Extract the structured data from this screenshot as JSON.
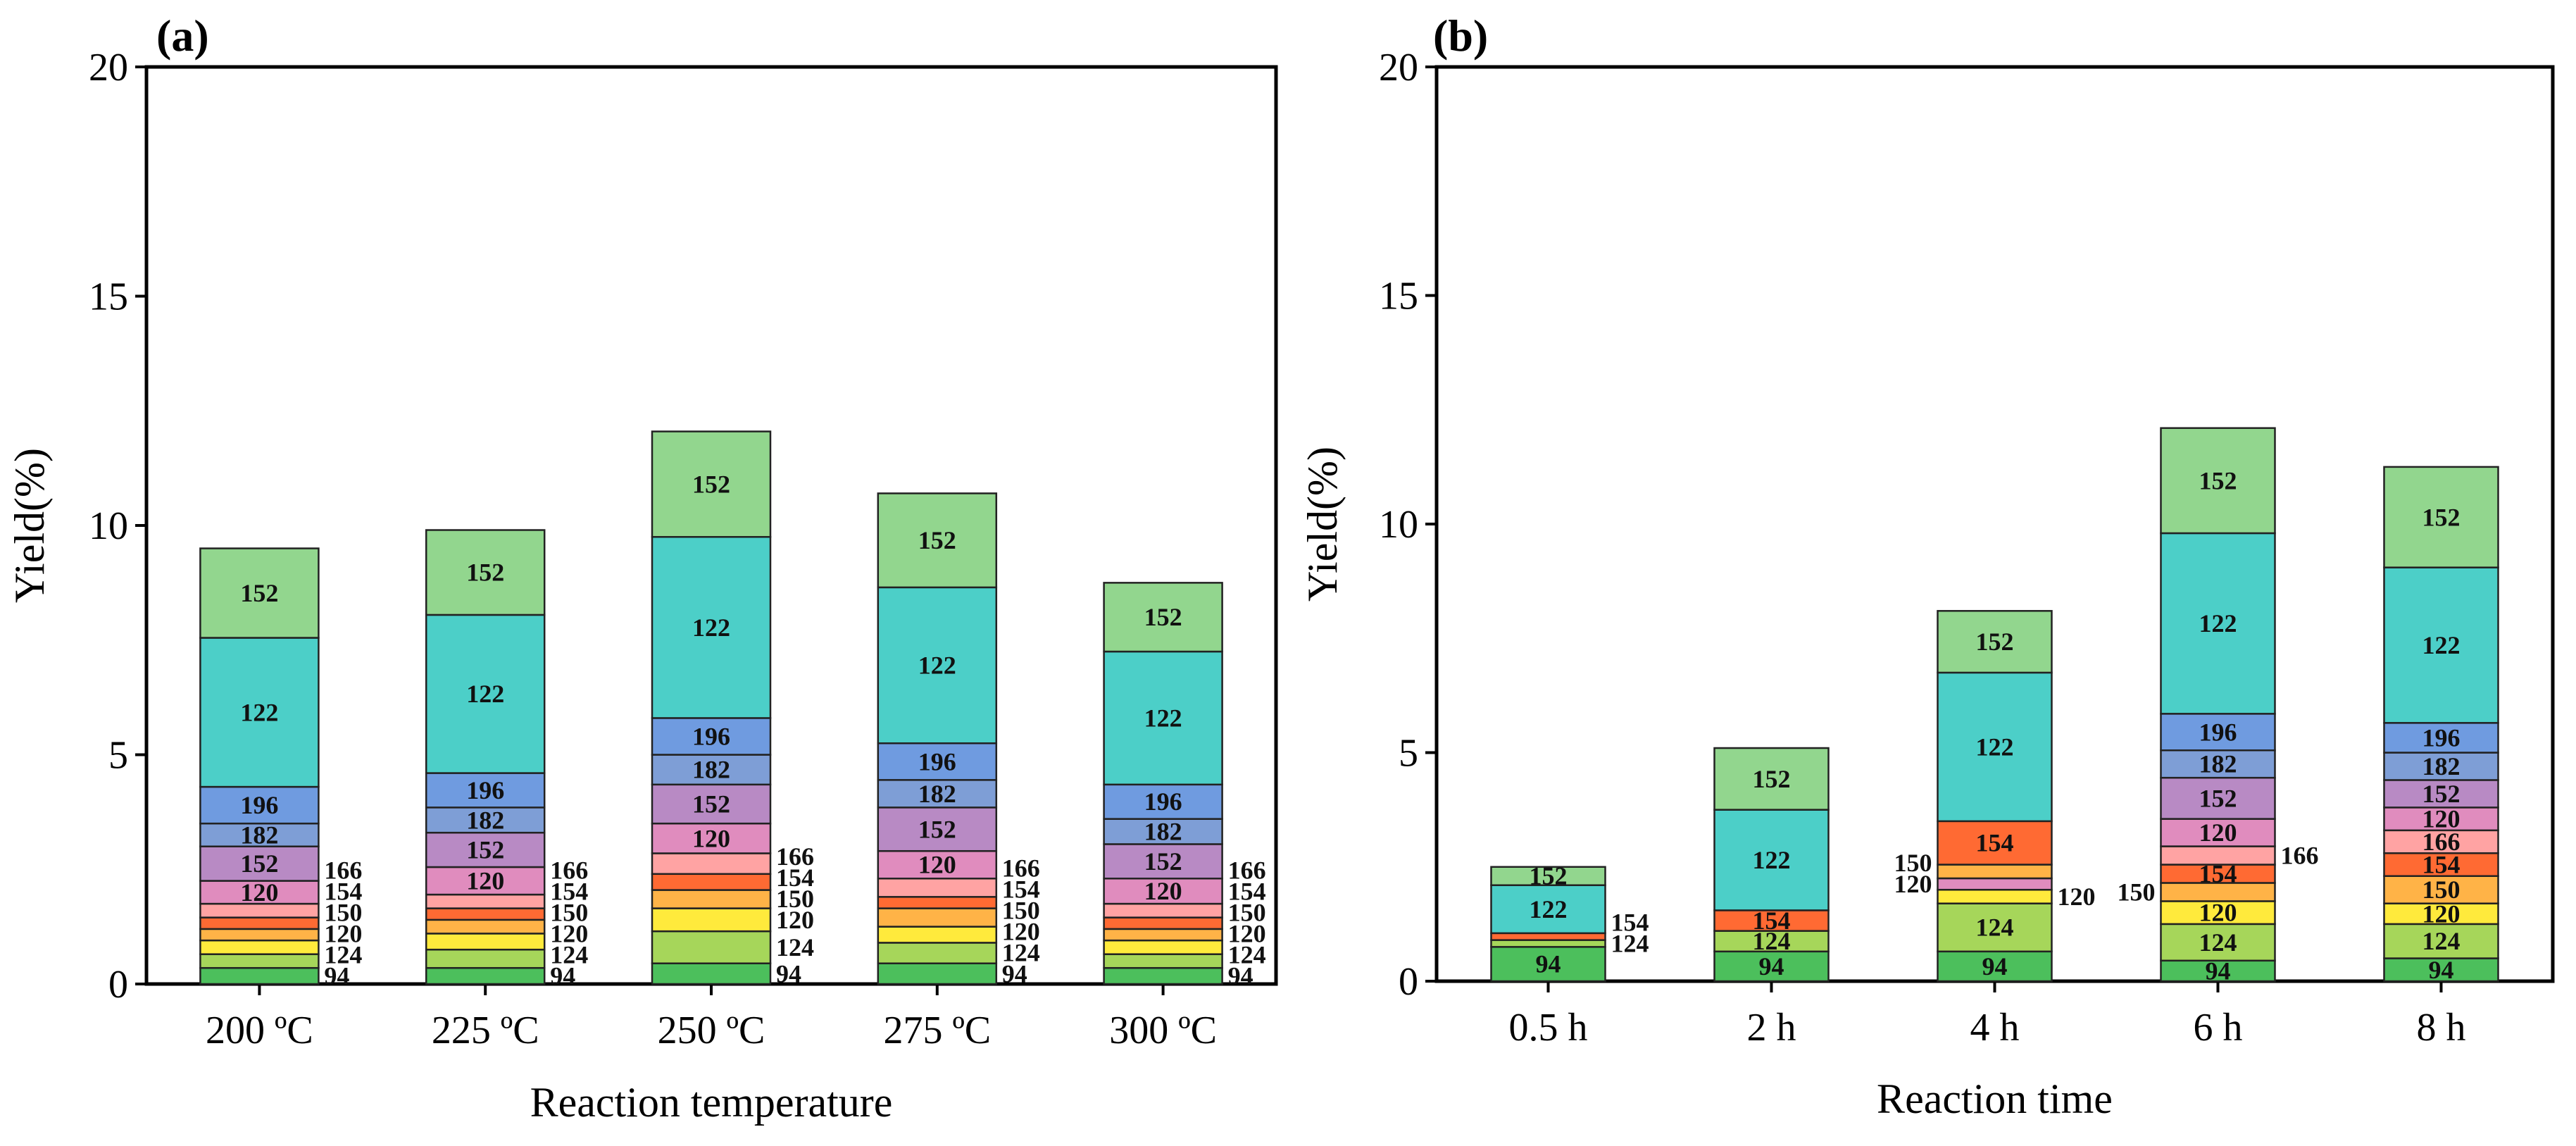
{
  "colors": {
    "94": "#4cbf5c",
    "124": "#a6d65a",
    "120": "#ffea3c",
    "150": "#ffb347",
    "154": "#ff6a33",
    "166": "#ff9a9a",
    "152": "#b88ac4",
    "182": "#7e9ed6",
    "196": "#6f9be0",
    "122": "#4ccfc8",
    "152top": "#92d68e",
    "120p": "#e08cbe",
    "166p": "#ffa3a3"
  },
  "chart_data": [
    {
      "type": "bar",
      "panel": "(a)",
      "title": "",
      "xlabel": "Reaction temperature",
      "ylabel": "Yield(%)",
      "ylim": [
        0,
        20
      ],
      "yticks": [
        "0",
        "5",
        "10",
        "15",
        "20"
      ],
      "categories": [
        "200 ºC",
        "225 ºC",
        "250 ºC",
        "275 ºC",
        "300 ºC"
      ],
      "stacked": true,
      "bars": [
        {
          "category": "200 ºC",
          "segments": [
            {
              "label": "94",
              "value": 0.35,
              "color": "94",
              "inside": false
            },
            {
              "label": "124",
              "value": 0.3,
              "color": "124",
              "inside": false
            },
            {
              "label": "120",
              "value": 0.3,
              "color": "120",
              "inside": false
            },
            {
              "label": "150",
              "value": 0.25,
              "color": "150",
              "inside": false
            },
            {
              "label": "154",
              "value": 0.25,
              "color": "154",
              "inside": false
            },
            {
              "label": "166",
              "value": 0.3,
              "color": "166p",
              "inside": false
            },
            {
              "label": "120",
              "value": 0.5,
              "color": "120p",
              "inside": true
            },
            {
              "label": "152",
              "value": 0.75,
              "color": "152",
              "inside": true
            },
            {
              "label": "182",
              "value": 0.5,
              "color": "182",
              "inside": true
            },
            {
              "label": "196",
              "value": 0.8,
              "color": "196",
              "inside": true
            },
            {
              "label": "122",
              "value": 3.25,
              "color": "122",
              "inside": true
            },
            {
              "label": "152",
              "value": 1.95,
              "color": "152top",
              "inside": true
            }
          ]
        },
        {
          "category": "225 ºC",
          "segments": [
            {
              "label": "94",
              "value": 0.35,
              "color": "94",
              "inside": false
            },
            {
              "label": "124",
              "value": 0.4,
              "color": "124",
              "inside": false
            },
            {
              "label": "120",
              "value": 0.35,
              "color": "120",
              "inside": false
            },
            {
              "label": "150",
              "value": 0.3,
              "color": "150",
              "inside": false
            },
            {
              "label": "154",
              "value": 0.25,
              "color": "154",
              "inside": false
            },
            {
              "label": "166",
              "value": 0.3,
              "color": "166p",
              "inside": false
            },
            {
              "label": "120",
              "value": 0.6,
              "color": "120p",
              "inside": true
            },
            {
              "label": "152",
              "value": 0.75,
              "color": "152",
              "inside": true
            },
            {
              "label": "182",
              "value": 0.55,
              "color": "182",
              "inside": true
            },
            {
              "label": "196",
              "value": 0.75,
              "color": "196",
              "inside": true
            },
            {
              "label": "122",
              "value": 3.45,
              "color": "122",
              "inside": true
            },
            {
              "label": "152",
              "value": 1.85,
              "color": "152top",
              "inside": true
            }
          ]
        },
        {
          "category": "250 ºC",
          "segments": [
            {
              "label": "94",
              "value": 0.45,
              "color": "94",
              "inside": false
            },
            {
              "label": "124",
              "value": 0.7,
              "color": "124",
              "inside": false
            },
            {
              "label": "120",
              "value": 0.5,
              "color": "120",
              "inside": false
            },
            {
              "label": "150",
              "value": 0.4,
              "color": "150",
              "inside": false
            },
            {
              "label": "154",
              "value": 0.35,
              "color": "154",
              "inside": false
            },
            {
              "label": "166",
              "value": 0.45,
              "color": "166p",
              "inside": false
            },
            {
              "label": "120",
              "value": 0.65,
              "color": "120p",
              "inside": true
            },
            {
              "label": "152",
              "value": 0.85,
              "color": "152",
              "inside": true
            },
            {
              "label": "182",
              "value": 0.65,
              "color": "182",
              "inside": true
            },
            {
              "label": "196",
              "value": 0.8,
              "color": "196",
              "inside": true
            },
            {
              "label": "122",
              "value": 3.95,
              "color": "122",
              "inside": true
            },
            {
              "label": "152",
              "value": 2.3,
              "color": "152top",
              "inside": true
            }
          ]
        },
        {
          "category": "275 ºC",
          "segments": [
            {
              "label": "94",
              "value": 0.45,
              "color": "94",
              "inside": false
            },
            {
              "label": "124",
              "value": 0.45,
              "color": "124",
              "inside": false
            },
            {
              "label": "120",
              "value": 0.35,
              "color": "120",
              "inside": false
            },
            {
              "label": "150",
              "value": 0.4,
              "color": "150",
              "inside": false
            },
            {
              "label": "154",
              "value": 0.25,
              "color": "154",
              "inside": false
            },
            {
              "label": "166",
              "value": 0.4,
              "color": "166p",
              "inside": false
            },
            {
              "label": "120",
              "value": 0.6,
              "color": "120p",
              "inside": true
            },
            {
              "label": "152",
              "value": 0.95,
              "color": "152",
              "inside": true
            },
            {
              "label": "182",
              "value": 0.6,
              "color": "182",
              "inside": true
            },
            {
              "label": "196",
              "value": 0.8,
              "color": "196",
              "inside": true
            },
            {
              "label": "122",
              "value": 3.4,
              "color": "122",
              "inside": true
            },
            {
              "label": "152",
              "value": 2.05,
              "color": "152top",
              "inside": true
            }
          ]
        },
        {
          "category": "300 ºC",
          "segments": [
            {
              "label": "94",
              "value": 0.35,
              "color": "94",
              "inside": false
            },
            {
              "label": "124",
              "value": 0.3,
              "color": "124",
              "inside": false
            },
            {
              "label": "120",
              "value": 0.3,
              "color": "120",
              "inside": false
            },
            {
              "label": "150",
              "value": 0.25,
              "color": "150",
              "inside": false
            },
            {
              "label": "154",
              "value": 0.25,
              "color": "154",
              "inside": false
            },
            {
              "label": "166",
              "value": 0.3,
              "color": "166p",
              "inside": false
            },
            {
              "label": "120",
              "value": 0.55,
              "color": "120p",
              "inside": true
            },
            {
              "label": "152",
              "value": 0.75,
              "color": "152",
              "inside": true
            },
            {
              "label": "182",
              "value": 0.55,
              "color": "182",
              "inside": true
            },
            {
              "label": "196",
              "value": 0.75,
              "color": "196",
              "inside": true
            },
            {
              "label": "122",
              "value": 2.9,
              "color": "122",
              "inside": true
            },
            {
              "label": "152",
              "value": 1.5,
              "color": "152top",
              "inside": true
            }
          ]
        }
      ]
    },
    {
      "type": "bar",
      "panel": "(b)",
      "title": "",
      "xlabel": "Reaction time",
      "ylabel": "Yield(%)",
      "ylim": [
        0,
        20
      ],
      "yticks": [
        "0",
        "5",
        "10",
        "15",
        "20"
      ],
      "categories": [
        "0.5 h",
        "2 h",
        "4 h",
        "6 h",
        "8 h"
      ],
      "stacked": true,
      "bars": [
        {
          "category": "0.5 h",
          "segments": [
            {
              "label": "94",
              "value": 0.75,
              "color": "94",
              "inside": true
            },
            {
              "label": "124",
              "value": 0.15,
              "color": "124",
              "inside": false,
              "side": "right"
            },
            {
              "label": "154",
              "value": 0.15,
              "color": "154",
              "inside": false,
              "side": "right"
            },
            {
              "label": "122",
              "value": 1.05,
              "color": "122",
              "inside": true
            },
            {
              "label": "152",
              "value": 0.4,
              "color": "152top",
              "inside": true
            }
          ]
        },
        {
          "category": "2 h",
          "segments": [
            {
              "label": "94",
              "value": 0.65,
              "color": "94",
              "inside": true
            },
            {
              "label": "124",
              "value": 0.45,
              "color": "124",
              "inside": true
            },
            {
              "label": "154",
              "value": 0.45,
              "color": "154",
              "inside": true
            },
            {
              "label": "122",
              "value": 2.2,
              "color": "122",
              "inside": true
            },
            {
              "label": "152",
              "value": 1.35,
              "color": "152top",
              "inside": true
            }
          ]
        },
        {
          "category": "4 h",
          "segments": [
            {
              "label": "94",
              "value": 0.65,
              "color": "94",
              "inside": true
            },
            {
              "label": "124",
              "value": 1.05,
              "color": "124",
              "inside": true
            },
            {
              "label": "120",
              "value": 0.3,
              "color": "120",
              "inside": false,
              "side": "right"
            },
            {
              "label": "120",
              "value": 0.25,
              "color": "120p",
              "inside": false,
              "side": "left"
            },
            {
              "label": "150",
              "value": 0.3,
              "color": "150",
              "inside": false,
              "side": "left"
            },
            {
              "label": "154",
              "value": 0.95,
              "color": "154",
              "inside": true
            },
            {
              "label": "122",
              "value": 3.25,
              "color": "122",
              "inside": true
            },
            {
              "label": "152",
              "value": 1.35,
              "color": "152top",
              "inside": true
            }
          ]
        },
        {
          "category": "6 h",
          "segments": [
            {
              "label": "94",
              "value": 0.45,
              "color": "94",
              "inside": true
            },
            {
              "label": "124",
              "value": 0.8,
              "color": "124",
              "inside": true
            },
            {
              "label": "120",
              "value": 0.5,
              "color": "120",
              "inside": true
            },
            {
              "label": "150",
              "value": 0.4,
              "color": "150",
              "inside": false,
              "side": "left"
            },
            {
              "label": "154",
              "value": 0.4,
              "color": "154",
              "inside": true
            },
            {
              "label": "166",
              "value": 0.4,
              "color": "166p",
              "inside": false,
              "side": "right"
            },
            {
              "label": "120",
              "value": 0.6,
              "color": "120p",
              "inside": true
            },
            {
              "label": "152",
              "value": 0.9,
              "color": "152",
              "inside": true
            },
            {
              "label": "182",
              "value": 0.6,
              "color": "182",
              "inside": true
            },
            {
              "label": "196",
              "value": 0.8,
              "color": "196",
              "inside": true
            },
            {
              "label": "122",
              "value": 3.95,
              "color": "122",
              "inside": true
            },
            {
              "label": "152",
              "value": 2.3,
              "color": "152top",
              "inside": true
            }
          ]
        },
        {
          "category": "8 h",
          "segments": [
            {
              "label": "94",
              "value": 0.5,
              "color": "94",
              "inside": true
            },
            {
              "label": "124",
              "value": 0.75,
              "color": "124",
              "inside": true
            },
            {
              "label": "120",
              "value": 0.45,
              "color": "120",
              "inside": true
            },
            {
              "label": "150",
              "value": 0.6,
              "color": "150",
              "inside": true
            },
            {
              "label": "154",
              "value": 0.5,
              "color": "154",
              "inside": true
            },
            {
              "label": "166",
              "value": 0.5,
              "color": "166p",
              "inside": true
            },
            {
              "label": "120",
              "value": 0.5,
              "color": "120p",
              "inside": true
            },
            {
              "label": "152",
              "value": 0.6,
              "color": "152",
              "inside": true
            },
            {
              "label": "182",
              "value": 0.6,
              "color": "182",
              "inside": true
            },
            {
              "label": "196",
              "value": 0.65,
              "color": "196",
              "inside": true
            },
            {
              "label": "122",
              "value": 3.4,
              "color": "122",
              "inside": true
            },
            {
              "label": "152",
              "value": 2.2,
              "color": "152top",
              "inside": true
            }
          ]
        }
      ]
    }
  ]
}
